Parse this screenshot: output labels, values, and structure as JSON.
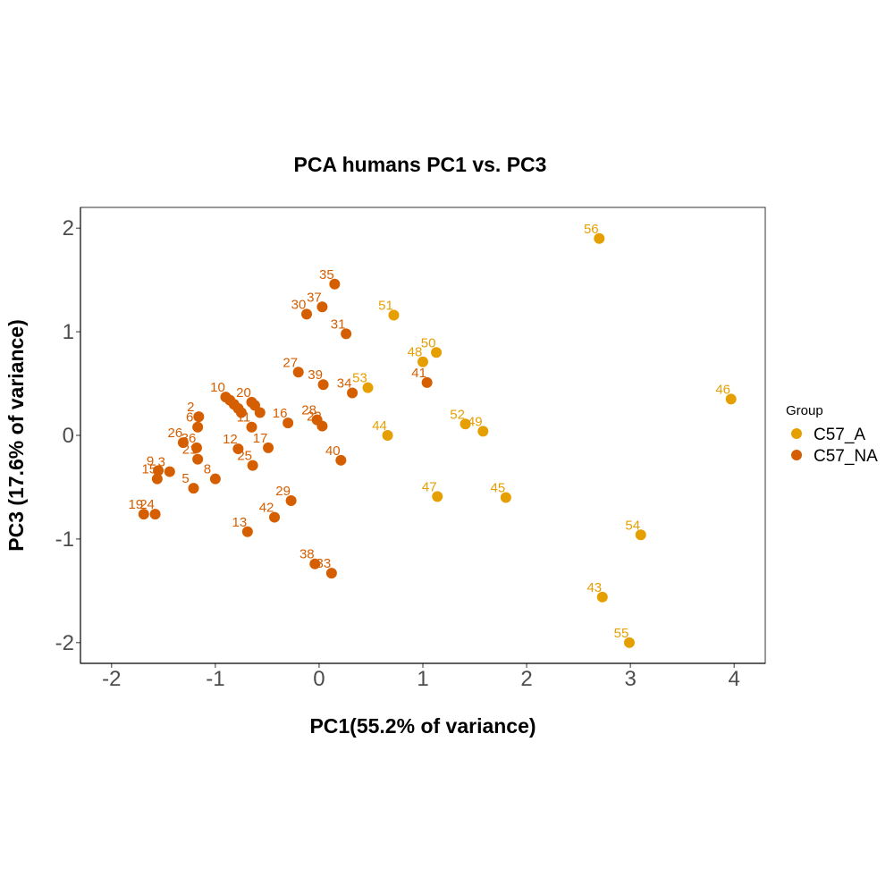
{
  "chart_data": {
    "type": "scatter",
    "title": "PCA humans PC1 vs. PC3",
    "xlabel": "PC1(55.2% of variance)",
    "ylabel": "PC3 (17.6% of variance)",
    "xlim": [
      -2.3,
      4.3
    ],
    "ylim": [
      -2.2,
      2.2
    ],
    "x_ticks": [
      -2,
      -1,
      0,
      1,
      2,
      3,
      4
    ],
    "y_ticks": [
      -2,
      -1,
      0,
      1,
      2
    ],
    "x_tick_labels": [
      "-2",
      "-1",
      "0",
      "1",
      "2",
      "3",
      "4"
    ],
    "y_tick_labels": [
      "-2",
      "-1",
      "0",
      "1",
      "2"
    ],
    "grid": false,
    "legend": {
      "title": "Group",
      "placement": "right",
      "entries": [
        {
          "label": "C57_A",
          "color": "#E69F00"
        },
        {
          "label": "C57_NA",
          "color": "#D55E00"
        }
      ]
    },
    "series": [
      {
        "name": "C57_A",
        "color": "#E69F00",
        "points": [
          {
            "label": "56",
            "x": 2.7,
            "y": 1.9
          },
          {
            "label": "51",
            "x": 0.72,
            "y": 1.16
          },
          {
            "label": "50",
            "x": 1.13,
            "y": 0.8
          },
          {
            "label": "48",
            "x": 1.0,
            "y": 0.71
          },
          {
            "label": "53",
            "x": 0.47,
            "y": 0.46
          },
          {
            "label": "46",
            "x": 3.97,
            "y": 0.35
          },
          {
            "label": "52",
            "x": 1.41,
            "y": 0.11
          },
          {
            "label": "49",
            "x": 1.58,
            "y": 0.04
          },
          {
            "label": "44",
            "x": 0.66,
            "y": 0.0
          },
          {
            "label": "47",
            "x": 1.14,
            "y": -0.59
          },
          {
            "label": "45",
            "x": 1.8,
            "y": -0.6
          },
          {
            "label": "54",
            "x": 3.1,
            "y": -0.96
          },
          {
            "label": "43",
            "x": 2.73,
            "y": -1.56
          },
          {
            "label": "55",
            "x": 2.99,
            "y": -2.0
          }
        ]
      },
      {
        "name": "C57_NA",
        "color": "#D55E00",
        "points": [
          {
            "label": "35",
            "x": 0.15,
            "y": 1.46
          },
          {
            "label": "37",
            "x": 0.03,
            "y": 1.24
          },
          {
            "label": "30",
            "x": -0.12,
            "y": 1.17
          },
          {
            "label": "31",
            "x": 0.26,
            "y": 0.98
          },
          {
            "label": "27",
            "x": -0.2,
            "y": 0.61
          },
          {
            "label": "39",
            "x": 0.04,
            "y": 0.49
          },
          {
            "label": "41",
            "x": 1.04,
            "y": 0.51
          },
          {
            "label": "34",
            "x": 0.32,
            "y": 0.41
          },
          {
            "label": "10",
            "x": -0.9,
            "y": 0.37
          },
          {
            "label": "20",
            "x": -0.65,
            "y": 0.32
          },
          {
            "label": "",
            "x": -0.86,
            "y": 0.34
          },
          {
            "label": "",
            "x": -0.82,
            "y": 0.3
          },
          {
            "label": "",
            "x": -0.78,
            "y": 0.26
          },
          {
            "label": "",
            "x": -0.75,
            "y": 0.22
          },
          {
            "label": "",
            "x": -0.62,
            "y": 0.29
          },
          {
            "label": "",
            "x": -0.57,
            "y": 0.22
          },
          {
            "label": "2",
            "x": -1.16,
            "y": 0.18
          },
          {
            "label": "6",
            "x": -1.17,
            "y": 0.08
          },
          {
            "label": "11",
            "x": -0.65,
            "y": 0.08
          },
          {
            "label": "16",
            "x": -0.3,
            "y": 0.12
          },
          {
            "label": "28",
            "x": -0.02,
            "y": 0.15
          },
          {
            "label": "22",
            "x": 0.03,
            "y": 0.09
          },
          {
            "label": "26",
            "x": -1.31,
            "y": -0.07
          },
          {
            "label": "36",
            "x": -1.18,
            "y": -0.12
          },
          {
            "label": "12",
            "x": -0.78,
            "y": -0.13
          },
          {
            "label": "17",
            "x": -0.49,
            "y": -0.12
          },
          {
            "label": "21",
            "x": -1.17,
            "y": -0.23
          },
          {
            "label": "25",
            "x": -0.64,
            "y": -0.29
          },
          {
            "label": "40",
            "x": 0.21,
            "y": -0.24
          },
          {
            "label": "9",
            "x": -1.55,
            "y": -0.34
          },
          {
            "label": "3",
            "x": -1.44,
            "y": -0.35
          },
          {
            "label": "15",
            "x": -1.56,
            "y": -0.42
          },
          {
            "label": "8",
            "x": -1.0,
            "y": -0.42
          },
          {
            "label": "5",
            "x": -1.21,
            "y": -0.51
          },
          {
            "label": "29",
            "x": -0.27,
            "y": -0.63
          },
          {
            "label": "19",
            "x": -1.69,
            "y": -0.76
          },
          {
            "label": "24",
            "x": -1.58,
            "y": -0.76
          },
          {
            "label": "42",
            "x": -0.43,
            "y": -0.79
          },
          {
            "label": "13",
            "x": -0.69,
            "y": -0.93
          },
          {
            "label": "38",
            "x": -0.04,
            "y": -1.24
          },
          {
            "label": "33",
            "x": 0.12,
            "y": -1.33
          }
        ]
      }
    ]
  }
}
